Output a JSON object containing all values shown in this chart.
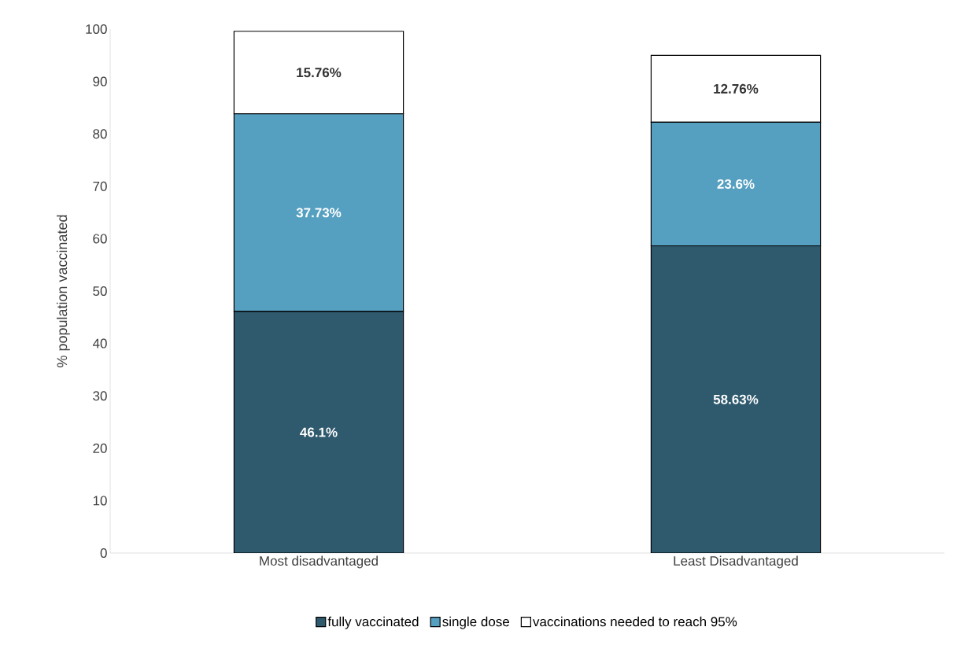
{
  "chart_data": {
    "type": "bar",
    "stacked": true,
    "ylabel": "% population vaccinated",
    "categories": [
      "Most disadvantaged",
      "Least Disadvantaged"
    ],
    "series": [
      {
        "name": "fully vaccinated",
        "color": "#2f5a6e",
        "values": [
          46.1,
          58.63
        ],
        "value_labels": [
          "46.1%",
          "58.63%"
        ]
      },
      {
        "name": "single dose",
        "color": "#559fc0",
        "values": [
          37.73,
          23.6
        ],
        "value_labels": [
          "37.73%",
          "23.6%"
        ]
      },
      {
        "name": "vaccinations needed to reach 95%",
        "color": "#ffffff",
        "values": [
          15.76,
          12.76
        ],
        "value_labels": [
          "15.76%",
          "12.76%"
        ]
      }
    ],
    "ylim": [
      0,
      100
    ],
    "yticks": [
      0,
      10,
      20,
      30,
      40,
      50,
      60,
      70,
      80,
      90,
      100
    ],
    "grid": false,
    "legend": "bottom"
  }
}
